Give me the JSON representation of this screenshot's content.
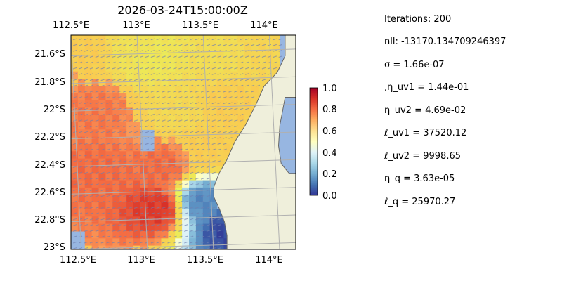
{
  "chart_data": {
    "type": "heatmap",
    "title": "2026-03-24T15:00:00Z",
    "xlabel": "",
    "ylabel": "",
    "x_ticks": [
      "112.5°E",
      "113°E",
      "113.5°E",
      "114°E"
    ],
    "x_tick_values": [
      112.5,
      113.0,
      113.5,
      114.0
    ],
    "y_ticks": [
      "21.6°S",
      "21.8°S",
      "22°S",
      "22.2°S",
      "22.4°S",
      "22.6°S",
      "22.8°S",
      "23°S"
    ],
    "y_tick_values": [
      -21.6,
      -21.8,
      -22.0,
      -22.2,
      -22.4,
      -22.6,
      -22.8,
      -23.0
    ],
    "xlim": [
      112.5,
      114.2
    ],
    "ylim": [
      -23.0,
      -21.45
    ],
    "grid": true,
    "colorbar": {
      "range": [
        0.0,
        1.0
      ],
      "ticks": [
        "0.0",
        "0.2",
        "0.4",
        "0.6",
        "0.8",
        "1.0"
      ],
      "tick_values": [
        0.0,
        0.2,
        0.4,
        0.6,
        0.8,
        1.0
      ],
      "colormap": "RdYlBu_r"
    },
    "field_samples": [
      {
        "lon": 112.6,
        "lat": -21.55,
        "value": 0.7
      },
      {
        "lon": 113.0,
        "lat": -21.55,
        "value": 0.6
      },
      {
        "lon": 113.1,
        "lat": -21.6,
        "value": 0.57
      },
      {
        "lon": 113.6,
        "lat": -21.6,
        "value": 0.62
      },
      {
        "lon": 114.0,
        "lat": -21.55,
        "value": 0.66
      },
      {
        "lon": 112.7,
        "lat": -22.0,
        "value": 0.78
      },
      {
        "lon": 113.3,
        "lat": -22.0,
        "value": 0.64
      },
      {
        "lon": 113.7,
        "lat": -21.95,
        "value": 0.7
      },
      {
        "lon": 112.7,
        "lat": -22.45,
        "value": 0.8
      },
      {
        "lon": 113.2,
        "lat": -22.4,
        "value": 0.8
      },
      {
        "lon": 113.5,
        "lat": -22.3,
        "value": 0.7
      },
      {
        "lon": 113.15,
        "lat": -22.7,
        "value": 0.88
      },
      {
        "lon": 113.5,
        "lat": -22.65,
        "value": 0.14
      },
      {
        "lon": 113.7,
        "lat": -22.85,
        "value": 0.03
      }
    ],
    "colors": {
      "ocean": "#97b6e1",
      "land": "#efefdb",
      "coast": "#666666",
      "grid": "#b0b0b0"
    }
  },
  "stats": [
    "Iterations: 200",
    "nll: -13170.134709246397",
    "σ = 1.66e-07",
    ",η_uv1 = 1.44e-01",
    "η_uv2 = 4.69e-02",
    "ℓ_uv1 = 37520.12",
    "ℓ_uv2 = 9998.65",
    "η_q = 3.63e-05",
    "ℓ_q = 25970.27"
  ]
}
